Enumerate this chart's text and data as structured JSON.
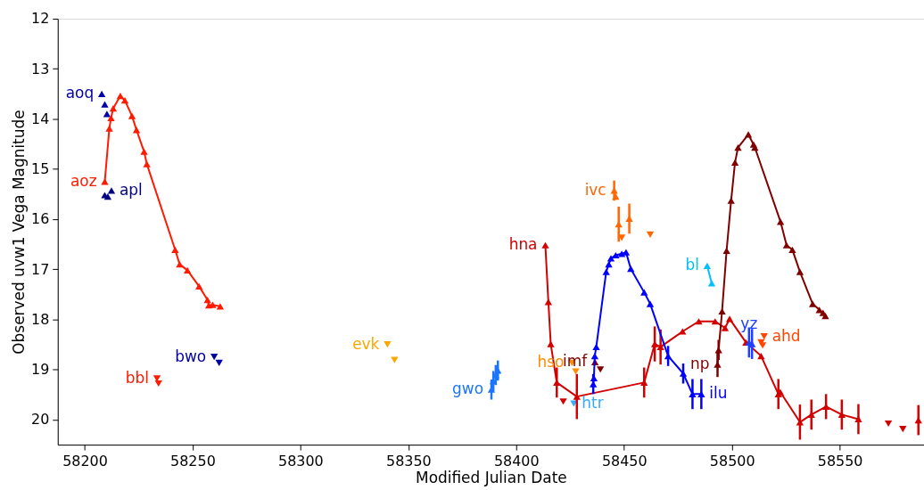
{
  "chart_data": {
    "type": "line",
    "xlabel": "Modified Julian Date",
    "ylabel": "Observed uvw1 Vega Magnitude",
    "xlim": [
      58187.5,
      58589
    ],
    "ylim": [
      20.5,
      12
    ],
    "xticks": [
      58200,
      58250,
      58300,
      58350,
      58400,
      58450,
      58500,
      58550
    ],
    "yticks": [
      12,
      13,
      14,
      15,
      16,
      17,
      18,
      19,
      20
    ],
    "grid": false,
    "marker": "triangle",
    "line_style": "solid",
    "series": [
      {
        "name": "aoq",
        "type": "scatter",
        "color": "#0000aa",
        "x": [
          58207.9,
          58209.3,
          58210.3
        ],
        "values": [
          13.5,
          13.71,
          13.9
        ]
      },
      {
        "name": "aoz",
        "color": "#ff1a00",
        "x": [
          58209.3,
          58211.4,
          58212.2,
          58213.2,
          58216.5,
          58218.6,
          58221.9,
          58224.0,
          58227.5,
          58228.8,
          58241.9,
          58244.0,
          58247.6,
          58253.0,
          58256.9,
          58257.5,
          58259.3,
          58262.8
        ],
        "values": [
          15.25,
          14.19,
          13.98,
          13.79,
          13.54,
          13.63,
          13.94,
          14.22,
          14.65,
          14.9,
          16.61,
          16.9,
          17.02,
          17.34,
          17.61,
          17.72,
          17.71,
          17.74
        ]
      },
      {
        "name": "apl",
        "type": "scatter",
        "color": "#000080",
        "x": [
          58209.3,
          58210.7,
          58212.4
        ],
        "values": [
          15.52,
          15.55,
          15.43
        ]
      },
      {
        "name": "bbl",
        "type": "scatter",
        "marker": "triangle-down",
        "color": "#ff1a00",
        "x": [
          58233.5,
          58234.2
        ],
        "values": [
          19.18,
          19.28
        ]
      },
      {
        "name": "bwo",
        "type": "scatter",
        "marker": "triangle-down",
        "color": "#0000a0",
        "x": [
          58260.0,
          58262.3
        ],
        "values": [
          18.75,
          18.87
        ]
      },
      {
        "name": "evk",
        "type": "scatter",
        "marker": "triangle-down",
        "color": "#ffa500",
        "x": [
          58340.3,
          58342.6,
          58343.6
        ],
        "values": [
          18.5,
          null,
          18.81
        ]
      },
      {
        "name": "gwo",
        "type": "scatter",
        "color": "#1a75ff",
        "x": [
          58388.5,
          58389.4,
          58390.5,
          58391.5
        ],
        "values": [
          19.4,
          19.23,
          19.11,
          19.02
        ],
        "errors": [
          0.2,
          0.2,
          0.2,
          0.2
        ]
      },
      {
        "name": "htr",
        "type": "scatter",
        "marker": "triangle-down",
        "color": "#33aaff",
        "x": [
          58426.7
        ],
        "values": [
          19.68
        ]
      },
      {
        "name": "hna",
        "color": "#d40000",
        "x": [
          58413.5,
          58414.9,
          58416.0,
          58418.8,
          58428.1,
          58459.3,
          58464.2,
          58466.9,
          58477.1,
          58484.6,
          58492.2,
          58496.8,
          58498.9,
          58506.5,
          58513.5,
          58521.5,
          58522.4,
          58531.5,
          58536.8,
          58543.6,
          58550.9,
          58558.6
        ],
        "values": [
          16.52,
          17.65,
          18.49,
          19.26,
          19.54,
          19.26,
          18.49,
          18.55,
          18.24,
          18.04,
          18.04,
          18.17,
          17.99,
          18.46,
          18.73,
          19.49,
          19.45,
          20.05,
          19.9,
          19.74,
          19.9,
          19.99
        ],
        "errors": [
          null,
          null,
          null,
          0.3,
          0.45,
          0.3,
          0.35,
          0.35,
          null,
          null,
          null,
          null,
          null,
          null,
          null,
          0.3,
          null,
          0.35,
          0.3,
          0.25,
          0.3,
          0.3
        ]
      },
      {
        "type": "scatter",
        "marker": "triangle-down",
        "color": "#d40000",
        "x": [
          58421.8,
          58572.5,
          58579.2
        ],
        "values": [
          19.64,
          20.08,
          20.19
        ]
      },
      {
        "type": "scatter",
        "color": "#d40000",
        "x": [
          58586.4
        ],
        "values": [
          20.01
        ],
        "errors": [
          0.3
        ]
      },
      {
        "name": "hso",
        "type": "scatter",
        "marker": "triangle-down",
        "color": "#ff8c00",
        "x": [
          58425.9,
          58427.6
        ],
        "values": [
          18.87,
          19.04
        ]
      },
      {
        "name": "imf",
        "type": "scatter",
        "color": "#800000",
        "x": [
          58436.5
        ],
        "values": [
          18.85
        ]
      },
      {
        "type": "scatter",
        "marker": "triangle-down",
        "color": "#800000",
        "x": [
          58439.0
        ],
        "values": [
          19.0
        ]
      },
      {
        "name": "ilu",
        "color": "#0000ff",
        "x": [
          58435.7,
          58436.0,
          58436.4,
          58437.1,
          58441.7,
          58442.9,
          58443.9,
          58446.1,
          58448.9,
          58450.9,
          58453.1,
          58459.3,
          58462.1,
          58470.4,
          58477.4,
          58481.7,
          58485.8
        ],
        "values": [
          19.29,
          19.17,
          18.73,
          18.55,
          17.05,
          16.9,
          16.78,
          16.72,
          16.69,
          16.66,
          16.99,
          17.46,
          17.69,
          18.73,
          19.08,
          19.49,
          19.49
        ],
        "errors": [
          0.2,
          null,
          null,
          null,
          null,
          null,
          null,
          null,
          null,
          null,
          null,
          null,
          null,
          0.2,
          0.2,
          0.3,
          0.3
        ]
      },
      {
        "name": "ivc",
        "type": "scatter",
        "color": "#ff6600",
        "x": [
          58445.4,
          58446.1,
          58447.5,
          58452.4
        ],
        "values": [
          15.43,
          15.55,
          16.1,
          15.99
        ],
        "errors": [
          0.2,
          null,
          0.35,
          0.3
        ]
      },
      {
        "type": "scatter",
        "marker": "triangle-down",
        "color": "#ff6600",
        "x": [
          58448.9,
          58461.4,
          58462.1
        ],
        "values": [
          16.37,
          null,
          16.31
        ]
      },
      {
        "name": "bl",
        "color": "#00bfff",
        "x": [
          58488.5,
          58490.6
        ],
        "values": [
          16.93,
          17.28
        ]
      },
      {
        "name": "np",
        "color": "#800000",
        "x": [
          58493.3,
          58493.8,
          58495.4,
          58497.5,
          58499.6,
          58501.4,
          58502.8,
          58507.6,
          58510.0,
          58510.6,
          58522.5,
          58525.3,
          58528.0,
          58531.5,
          58537.4,
          58540.5,
          58542.2,
          58543.3
        ],
        "values": [
          18.9,
          18.61,
          17.84,
          16.63,
          15.63,
          14.87,
          14.57,
          14.31,
          14.51,
          14.57,
          16.05,
          16.52,
          16.61,
          17.05,
          17.69,
          17.81,
          17.87,
          17.93
        ],
        "errors": [
          0.25,
          0.2,
          null,
          null,
          null,
          null,
          null,
          null,
          null,
          null,
          null,
          null,
          null,
          null,
          null,
          null,
          null,
          null
        ]
      },
      {
        "name": "yz",
        "type": "scatter",
        "color": "#1e40ff",
        "x": [
          58507.9,
          58509.3
        ],
        "values": [
          18.46,
          18.49
        ],
        "errors": [
          0.3,
          0.3
        ]
      },
      {
        "name": "ahd",
        "type": "scatter",
        "marker": "triangle-down",
        "color": "#ff4500",
        "x": [
          58513.5,
          58514.2,
          58514.9
        ],
        "values": [
          18.46,
          18.52,
          18.34
        ]
      }
    ]
  }
}
